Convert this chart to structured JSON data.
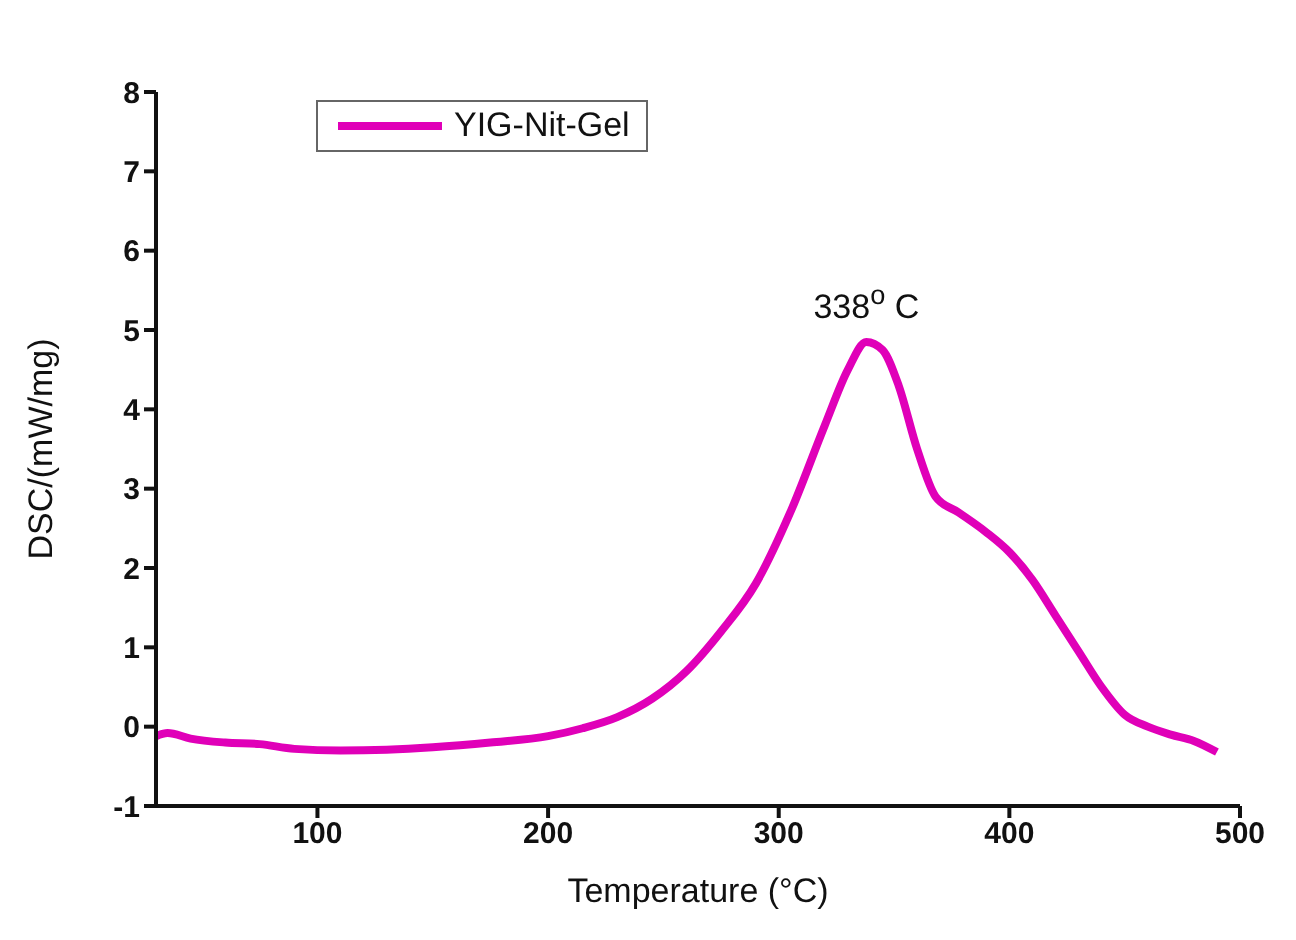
{
  "chart_data": {
    "type": "line",
    "xlabel": "Temperature (°C)",
    "ylabel": "DSC/(mW/mg)",
    "x": [
      30,
      35,
      45,
      60,
      75,
      90,
      110,
      130,
      150,
      175,
      200,
      215,
      230,
      245,
      260,
      275,
      290,
      305,
      320,
      330,
      338,
      345,
      352,
      360,
      368,
      378,
      390,
      400,
      410,
      420,
      430,
      440,
      450,
      460,
      470,
      480,
      490
    ],
    "series": [
      {
        "name": "YIG-Nit-Gel",
        "color": "#e000b8",
        "values": [
          -0.12,
          -0.08,
          -0.15,
          -0.2,
          -0.22,
          -0.28,
          -0.3,
          -0.29,
          -0.26,
          -0.2,
          -0.12,
          -0.02,
          0.12,
          0.35,
          0.7,
          1.2,
          1.8,
          2.7,
          3.8,
          4.5,
          4.85,
          4.75,
          4.3,
          3.5,
          2.9,
          2.7,
          2.45,
          2.2,
          1.85,
          1.4,
          0.95,
          0.5,
          0.15,
          0,
          -0.1,
          -0.18,
          -0.32
        ]
      }
    ],
    "xlim": [
      30,
      500
    ],
    "xticks": [
      100,
      200,
      300,
      400,
      500
    ],
    "ylim": [
      -1,
      8
    ],
    "yticks": [
      -1,
      0,
      1,
      2,
      3,
      4,
      5,
      6,
      7,
      8
    ],
    "annotations": [
      {
        "text": "338$^{o}$ C",
        "x": 338,
        "y": 4.85
      }
    ],
    "legend": "top left",
    "grid": false,
    "marker": "none",
    "line_style": "solid"
  }
}
